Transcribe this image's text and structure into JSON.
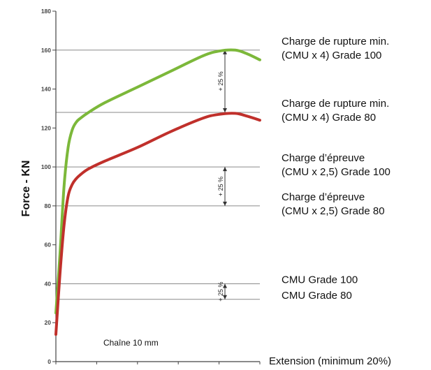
{
  "chart_data": {
    "type": "line",
    "ylabel": "Force - KN",
    "xlabel": "Extension (minimum 20%)",
    "ylim": [
      0,
      180
    ],
    "yticks": [
      0,
      20,
      40,
      60,
      80,
      100,
      120,
      140,
      160,
      180
    ],
    "xlim": [
      0,
      25
    ],
    "note": "Chaîne 10 mm",
    "reference_lines": [
      {
        "value": 160,
        "label1": "Charge de rupture min.",
        "label2": "(CMU x 4) Grade 100"
      },
      {
        "value": 128,
        "label1": "Charge de rupture min.",
        "label2": "(CMU x 4) Grade 80"
      },
      {
        "value": 100,
        "label1": "Charge d’épreuve",
        "label2": "(CMU x 2,5) Grade 100"
      },
      {
        "value": 80,
        "label1": "Charge d’épreuve",
        "label2": "(CMU x 2,5) Grade 80"
      },
      {
        "value": 40,
        "label1": "CMU Grade 100",
        "label2": ""
      },
      {
        "value": 32,
        "label1": "CMU Grade 80",
        "label2": ""
      }
    ],
    "percent_arrows": [
      {
        "label": "+ 25 %",
        "from": 128,
        "to": 160
      },
      {
        "label": "+ 25 %",
        "from": 80,
        "to": 100
      },
      {
        "label": "+ 25 %",
        "from": 32,
        "to": 40
      }
    ],
    "series": [
      {
        "color": "#7cb83a",
        "x": [
          0,
          0.5,
          1,
          1.5,
          2,
          2.5,
          3,
          4,
          6,
          10,
          14,
          18,
          20,
          22,
          23.5,
          25
        ],
        "y": [
          25,
          55,
          90,
          110,
          119,
          123,
          125,
          128,
          133,
          141,
          149,
          157,
          159.5,
          160,
          158,
          155
        ]
      },
      {
        "color": "#c0302b",
        "x": [
          0,
          0.5,
          1,
          1.5,
          2,
          2.5,
          3,
          4,
          6,
          10,
          14,
          18,
          20,
          22,
          23.5,
          25
        ],
        "y": [
          14,
          45,
          70,
          85,
          91,
          94,
          96,
          99,
          103,
          110,
          118,
          125,
          127,
          127.5,
          126,
          124
        ]
      }
    ]
  }
}
